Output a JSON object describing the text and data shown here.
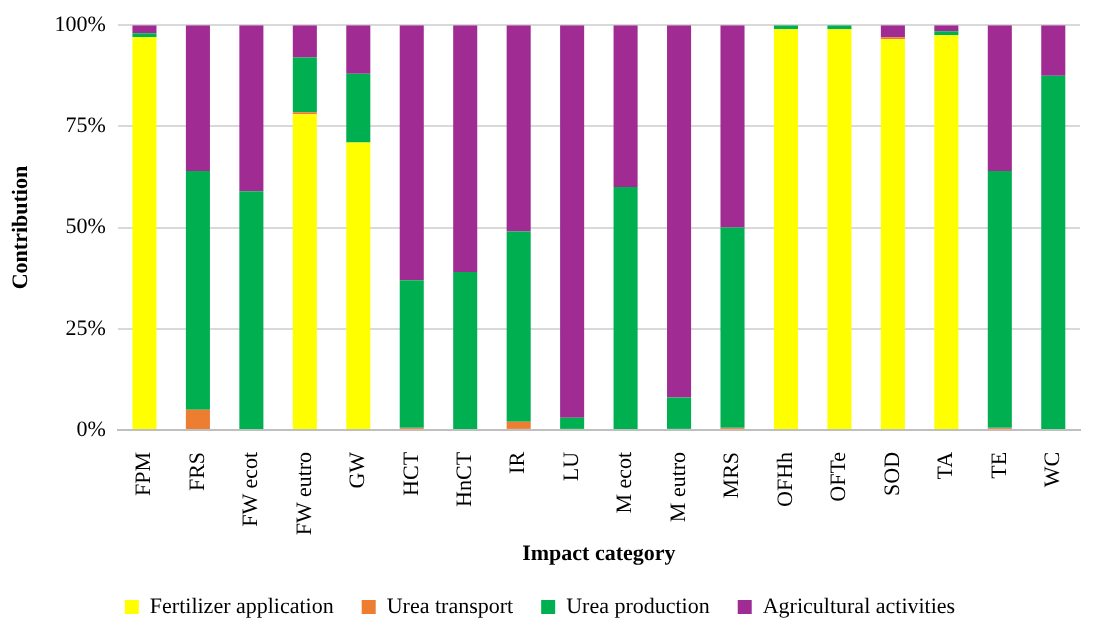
{
  "chart_data": {
    "type": "bar",
    "stacked": true,
    "xlabel": "Impact category",
    "ylabel": "Contribution",
    "categories": [
      "FPM",
      "FRS",
      "FW ecot",
      "FW eutro",
      "GW",
      "HCT",
      "HnCT",
      "IR",
      "LU",
      "M ecot",
      "M eutro",
      "MRS",
      "OFHh",
      "OFTe",
      "SOD",
      "TA",
      "TE",
      "WC"
    ],
    "series": [
      {
        "name": "Fertilizer application",
        "color": "#ffff00",
        "values": [
          97,
          0,
          0,
          78,
          71,
          0,
          0,
          0,
          0,
          0,
          0,
          0,
          99,
          99,
          96.5,
          97.5,
          0,
          0
        ]
      },
      {
        "name": "Urea transport",
        "color": "#ed7d31",
        "values": [
          0,
          5,
          0,
          0.5,
          0,
          0.5,
          0,
          2,
          0,
          0,
          0,
          0.5,
          0,
          0,
          0.5,
          0,
          0.5,
          0
        ]
      },
      {
        "name": "Urea production",
        "color": "#00b050",
        "values": [
          1,
          59,
          59,
          13.5,
          17,
          36.5,
          39,
          47,
          3,
          60,
          8,
          49.5,
          1,
          1,
          0,
          1,
          63.5,
          87.5
        ]
      },
      {
        "name": "Agricultural activities",
        "color": "#a02b93",
        "values": [
          2,
          36,
          41,
          8,
          12,
          63,
          61,
          51,
          97,
          40,
          92,
          50,
          null,
          null,
          3,
          1.5,
          36,
          12.5
        ]
      }
    ],
    "ylim": [
      0,
      100
    ],
    "yticks": [
      {
        "value": 0,
        "label": "0%"
      },
      {
        "value": 25,
        "label": "25%"
      },
      {
        "value": 50,
        "label": "50%"
      },
      {
        "value": 75,
        "label": "75%"
      },
      {
        "value": 100,
        "label": "100%"
      }
    ],
    "grid": "y",
    "legend": "bottom"
  }
}
